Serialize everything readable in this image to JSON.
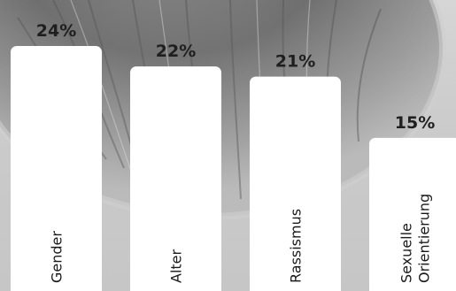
{
  "chart_data": {
    "type": "bar",
    "title": "",
    "xlabel": "",
    "ylabel": "",
    "ylim": [
      0,
      24
    ],
    "categories": [
      [
        "Gender"
      ],
      [
        "Alter"
      ],
      [
        "Rassismus"
      ],
      [
        "Sexuelle",
        "Orientierung"
      ]
    ],
    "values": [
      24,
      22,
      21,
      15
    ],
    "value_labels": [
      "24%",
      "22%",
      "21%",
      "15%"
    ],
    "bar_color": "#ffffff",
    "label_color": "#1f1f1f",
    "grid": false,
    "legend": "none"
  }
}
